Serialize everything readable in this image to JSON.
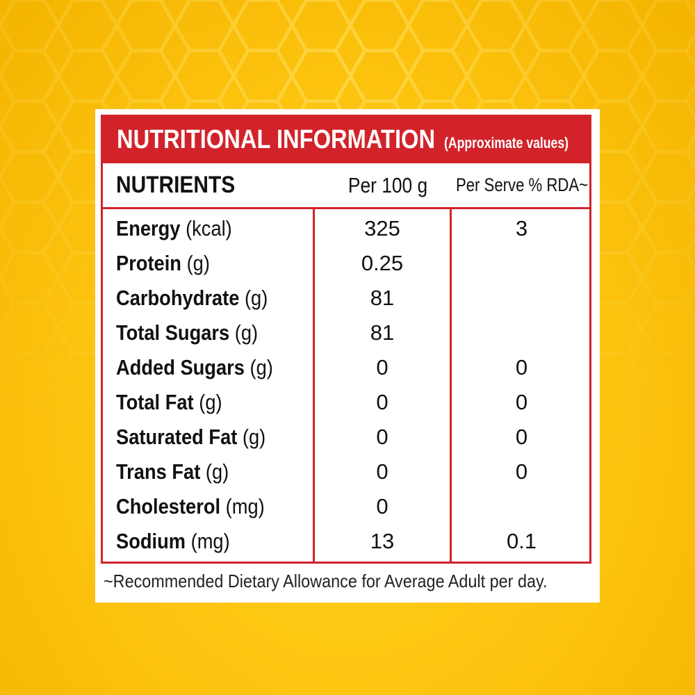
{
  "background": {
    "description_color": "#fcc30f"
  },
  "colors": {
    "accent_red": "#d2232a",
    "panel": "#ffffff",
    "text": "#111111"
  },
  "title": {
    "main": "NUTRITIONAL INFORMATION",
    "sub": "(Approximate values)"
  },
  "header": {
    "nutrients": "NUTRIENTS",
    "per100": "Per 100 g",
    "rda": "Per Serve % RDA~"
  },
  "rows": [
    {
      "name": "Energy",
      "unit": "(kcal)",
      "per100": "325",
      "rda": "3"
    },
    {
      "name": "Protein",
      "unit": "(g)",
      "per100": "0.25",
      "rda": ""
    },
    {
      "name": "Carbohydrate",
      "unit": "(g)",
      "per100": "81",
      "rda": ""
    },
    {
      "name": "Total Sugars",
      "unit": "(g)",
      "per100": "81",
      "rda": ""
    },
    {
      "name": "Added Sugars",
      "unit": "(g)",
      "per100": "0",
      "rda": "0"
    },
    {
      "name": "Total Fat",
      "unit": "(g)",
      "per100": "0",
      "rda": "0"
    },
    {
      "name": "Saturated Fat",
      "unit": "(g)",
      "per100": "0",
      "rda": "0"
    },
    {
      "name": "Trans Fat",
      "unit": "(g)",
      "per100": "0",
      "rda": "0"
    },
    {
      "name": "Cholesterol",
      "unit": "(mg)",
      "per100": "0",
      "rda": ""
    },
    {
      "name": "Sodium",
      "unit": "(mg)",
      "per100": "13",
      "rda": "0.1"
    }
  ],
  "footnote": "~Recommended Dietary Allowance for Average Adult per day."
}
